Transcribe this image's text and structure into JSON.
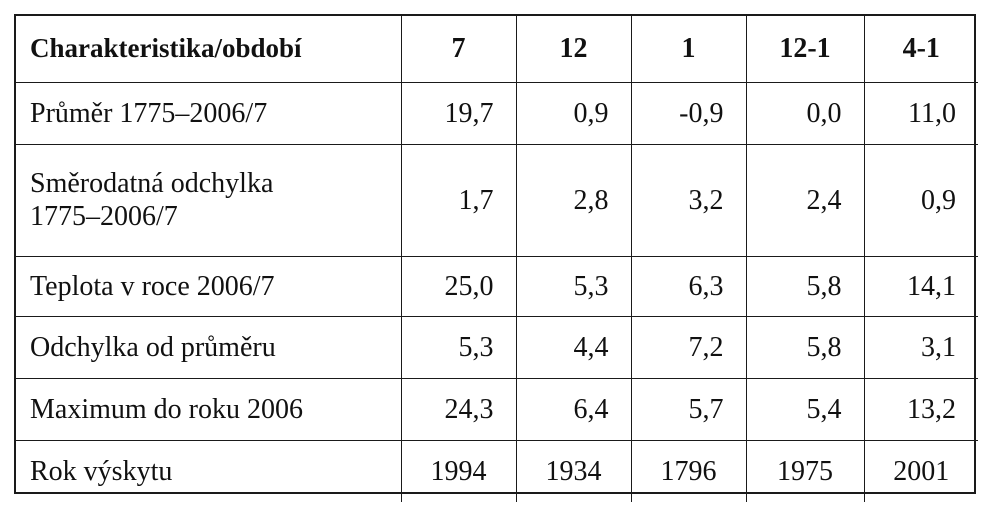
{
  "table": {
    "header": {
      "label": "Charakteristika/období",
      "periods": [
        "7",
        "12",
        "1",
        "12-1",
        "4-1"
      ]
    },
    "rows": [
      {
        "label_lines": [
          "Průměr 1775–2006/7"
        ],
        "values": [
          "19,7",
          "0,9",
          "-0,9",
          "0,0",
          "11,0"
        ]
      },
      {
        "label_lines": [
          "Směrodatná odchylka",
          "1775–2006/7"
        ],
        "values": [
          "1,7",
          "2,8",
          "3,2",
          "2,4",
          "0,9"
        ]
      },
      {
        "label_lines": [
          "Teplota v roce 2006/7"
        ],
        "values": [
          "25,0",
          "5,3",
          "6,3",
          "5,8",
          "14,1"
        ]
      },
      {
        "label_lines": [
          "Odchylka od průměru"
        ],
        "values": [
          "5,3",
          "4,4",
          "7,2",
          "5,8",
          "3,1"
        ]
      },
      {
        "label_lines": [
          "Maximum do roku 2006"
        ],
        "values": [
          "24,3",
          "6,4",
          "5,7",
          "5,4",
          "13,2"
        ]
      },
      {
        "label_lines": [
          "Rok výskytu"
        ],
        "values": [
          "1994",
          "1934",
          "1796",
          "1975",
          "2001"
        ]
      }
    ]
  }
}
